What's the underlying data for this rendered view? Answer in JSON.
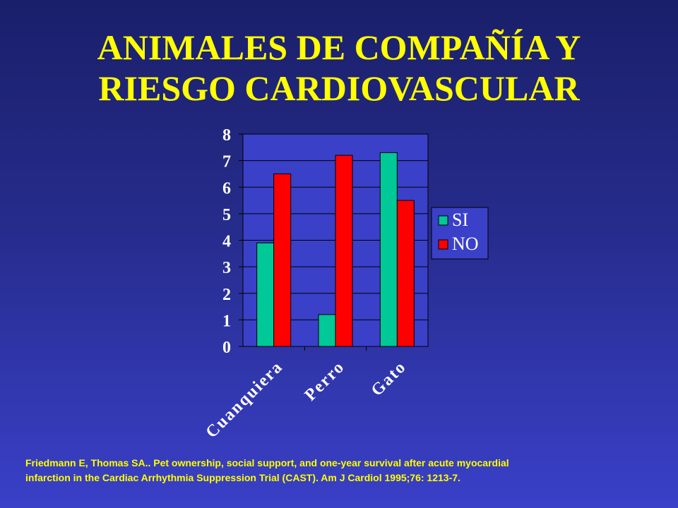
{
  "title": {
    "line1": "ANIMALES DE COMPAÑÍA Y",
    "line2": "RIESGO CARDIOVASCULAR"
  },
  "chart_data": {
    "type": "bar",
    "categories": [
      "Cuanquiera",
      "Perro",
      "Gato"
    ],
    "series": [
      {
        "name": "SI",
        "values": [
          3.9,
          1.2,
          7.3
        ],
        "color": "#00c896"
      },
      {
        "name": "NO",
        "values": [
          6.5,
          7.2,
          5.5
        ],
        "color": "#ff0000"
      }
    ],
    "ylim": [
      0,
      8
    ],
    "yticks": [
      0,
      1,
      2,
      3,
      4,
      5,
      6,
      7,
      8
    ],
    "grid": true,
    "legend": "right",
    "plot_background": "#3a40c8",
    "text_color": "#ffffff"
  },
  "citation": {
    "line1": "Friedmann E, Thomas SA.. Pet ownership, social support, and one-year survival after acute myocardial",
    "line2": "infarction in the Cardiac Arrhythmia Suppression Trial (CAST). Am J Cardiol 1995;76: 1213-7."
  }
}
